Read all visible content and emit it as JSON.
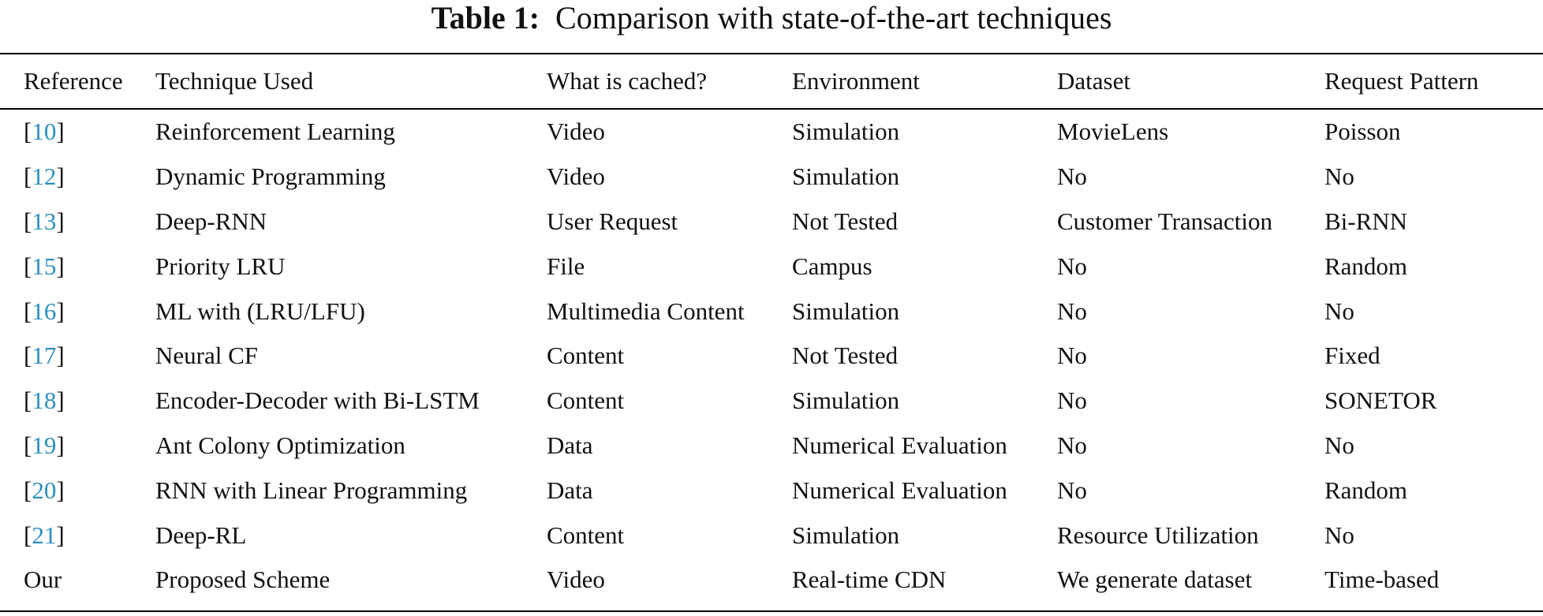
{
  "caption": {
    "label": "Table 1:",
    "text": "Comparison with state-of-the-art techniques"
  },
  "table": {
    "headers": [
      "Reference",
      "Technique Used",
      "What is cached?",
      "Environment",
      "Dataset",
      "Request Pattern"
    ],
    "rows": [
      {
        "ref": "10",
        "technique": "Reinforcement Learning",
        "cached": "Video",
        "environment": "Simulation",
        "dataset": "MovieLens",
        "pattern": "Poisson"
      },
      {
        "ref": "12",
        "technique": "Dynamic Programming",
        "cached": "Video",
        "environment": "Simulation",
        "dataset": "No",
        "pattern": "No"
      },
      {
        "ref": "13",
        "technique": "Deep-RNN",
        "cached": "User Request",
        "environment": "Not Tested",
        "dataset": "Customer Transaction",
        "pattern": "Bi-RNN"
      },
      {
        "ref": "15",
        "technique": "Priority LRU",
        "cached": "File",
        "environment": "Campus",
        "dataset": "No",
        "pattern": "Random"
      },
      {
        "ref": "16",
        "technique": "ML with (LRU/LFU)",
        "cached": "Multimedia Content",
        "environment": "Simulation",
        "dataset": "No",
        "pattern": "No"
      },
      {
        "ref": "17",
        "technique": "Neural CF",
        "cached": "Content",
        "environment": "Not Tested",
        "dataset": "No",
        "pattern": "Fixed"
      },
      {
        "ref": "18",
        "technique": "Encoder-Decoder with Bi-LSTM",
        "cached": "Content",
        "environment": "Simulation",
        "dataset": "No",
        "pattern": "SONETOR"
      },
      {
        "ref": "19",
        "technique": "Ant Colony Optimization",
        "cached": "Data",
        "environment": "Numerical Evaluation",
        "dataset": "No",
        "pattern": "No"
      },
      {
        "ref": "20",
        "technique": "RNN with Linear Programming",
        "cached": "Data",
        "environment": "Numerical Evaluation",
        "dataset": "No",
        "pattern": "Random"
      },
      {
        "ref": "21",
        "technique": "Deep-RL",
        "cached": "Content",
        "environment": "Simulation",
        "dataset": "Resource Utilization",
        "pattern": "No"
      }
    ],
    "last_row": {
      "ref": "Our",
      "technique": "Proposed Scheme",
      "cached": "Video",
      "environment": "Real-time CDN",
      "dataset": "We generate dataset",
      "pattern": "Time-based"
    }
  },
  "colors": {
    "citation_link": "#2a8fbf",
    "text": "#111111",
    "rule": "#000000"
  }
}
